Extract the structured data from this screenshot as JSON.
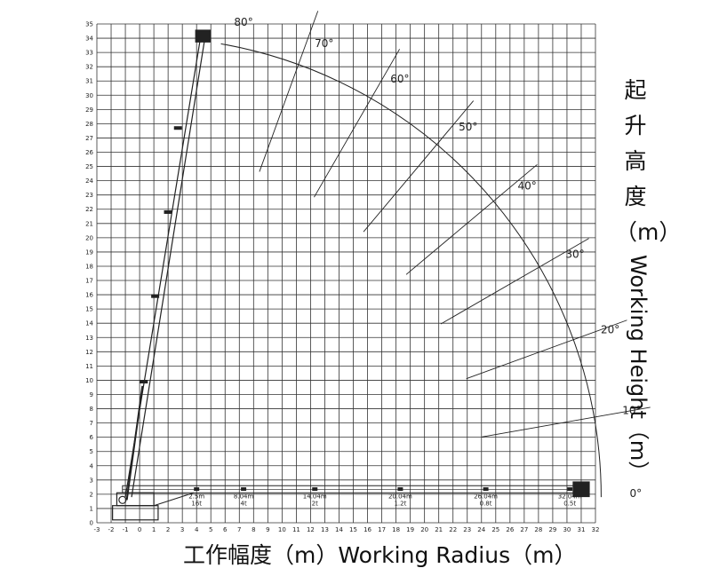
{
  "axis_titles": {
    "x": "工作幅度（m）Working Radius（m）",
    "y_chinese": "起升高度（m）",
    "y_english": "Working Height（m）"
  },
  "chart_data": {
    "type": "diagram",
    "subject": "aerial work platform working range chart",
    "xlabel": "工作幅度（m）Working Radius（m）",
    "ylabel": "起升高度（m）Working Height（m）",
    "xlim": [
      -3,
      32
    ],
    "ylim": [
      0,
      35
    ],
    "x_ticks": [
      -3,
      -2,
      -1,
      0,
      1,
      2,
      3,
      4,
      5,
      6,
      7,
      8,
      9,
      10,
      11,
      12,
      13,
      14,
      15,
      16,
      17,
      18,
      19,
      20,
      21,
      22,
      23,
      24,
      25,
      26,
      27,
      28,
      29,
      30,
      31,
      32
    ],
    "y_ticks": [
      0,
      1,
      2,
      3,
      4,
      5,
      6,
      7,
      8,
      9,
      10,
      11,
      12,
      13,
      14,
      15,
      16,
      17,
      18,
      19,
      20,
      21,
      22,
      23,
      24,
      25,
      26,
      27,
      28,
      29,
      30,
      31,
      32,
      33,
      34,
      35
    ],
    "grid": true,
    "envelope_radius": 32.3,
    "angle_lines": [
      {
        "label": "0°",
        "angle": 0
      },
      {
        "label": "10°",
        "angle": 10
      },
      {
        "label": "20°",
        "angle": 20
      },
      {
        "label": "30°",
        "angle": 30
      },
      {
        "label": "40°",
        "angle": 40
      },
      {
        "label": "50°",
        "angle": 50
      },
      {
        "label": "60°",
        "angle": 60
      },
      {
        "label": "70°",
        "angle": 70
      },
      {
        "label": "80°",
        "angle": 80
      }
    ],
    "load_points": [
      {
        "radius_label": "2.5m",
        "load_label": "16t",
        "x": 4.0
      },
      {
        "radius_label": "8.04m",
        "load_label": "4t",
        "x": 7.3
      },
      {
        "radius_label": "14.04m",
        "load_label": "2t",
        "x": 12.3
      },
      {
        "radius_label": "20.04m",
        "load_label": "1.2t",
        "x": 18.3
      },
      {
        "radius_label": "26.04m",
        "load_label": "0.8t",
        "x": 24.3
      },
      {
        "radius_label": "32.04m",
        "load_label": "0.5t",
        "x": 30.2
      }
    ]
  }
}
